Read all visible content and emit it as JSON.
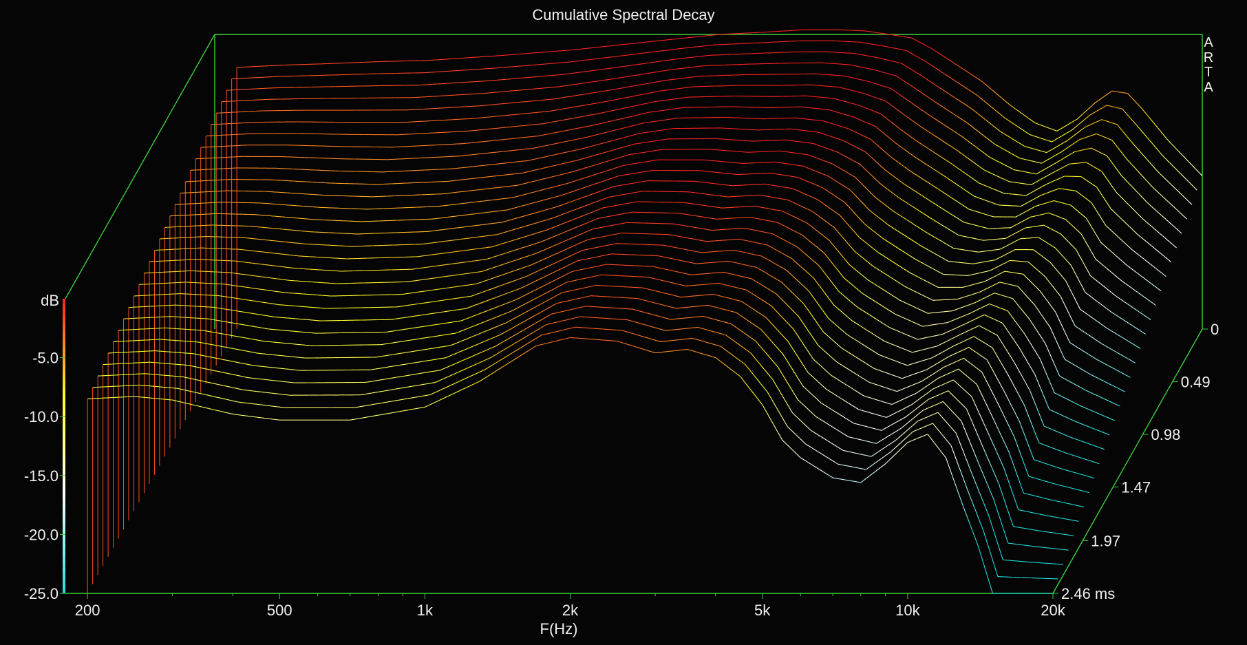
{
  "chart_data": {
    "type": "waterfall",
    "title": "Cumulative Spectral Decay",
    "xlabel": "F(Hz)",
    "ylabel": "dB",
    "watermark": [
      "A",
      "R",
      "T",
      "A"
    ],
    "x_scale": "log",
    "xlim": [
      180,
      20000
    ],
    "ylim": [
      -25,
      0
    ],
    "x_ticks": [
      {
        "value": 200,
        "label": "200"
      },
      {
        "value": 500,
        "label": "500"
      },
      {
        "value": 1000,
        "label": "1k"
      },
      {
        "value": 2000,
        "label": "2k"
      },
      {
        "value": 5000,
        "label": "5k"
      },
      {
        "value": 10000,
        "label": "10k"
      },
      {
        "value": 20000,
        "label": "20k"
      }
    ],
    "y_ticks": [
      {
        "value": -5,
        "label": "-5.0"
      },
      {
        "value": -10,
        "label": "-10.0"
      },
      {
        "value": -15,
        "label": "-15.0"
      },
      {
        "value": -20,
        "label": "-20.0"
      },
      {
        "value": -25,
        "label": "-25.0"
      }
    ],
    "time_axis": {
      "unit": "ms",
      "ticks": [
        {
          "value": 0,
          "label": "0"
        },
        {
          "value": 0.49,
          "label": "0.49"
        },
        {
          "value": 0.98,
          "label": "0.98"
        },
        {
          "value": 1.47,
          "label": "1.47"
        },
        {
          "value": 1.97,
          "label": "1.97"
        },
        {
          "value": 2.46,
          "label": "2.46 ms"
        }
      ]
    },
    "slice_count": 30,
    "slice_step_ms": 0.0848,
    "colors": {
      "frame": "#3cd23c",
      "text": "#f0f0f0",
      "background": "#050505",
      "color_scale": [
        "#ff2020",
        "#ffff20",
        "#ffffff",
        "#20e0e0"
      ]
    },
    "first_slice": {
      "freq_hz": [
        200,
        250,
        300,
        400,
        500,
        700,
        1000,
        1300,
        1700,
        2000,
        2500,
        3000,
        3500,
        4000,
        4500,
        5000,
        5500,
        6000,
        7000,
        8000,
        9000,
        10000,
        11000,
        12000,
        13000,
        14000,
        15000,
        17000,
        20000
      ],
      "db": [
        -2.8,
        -2.6,
        -2.5,
        -2.3,
        -2.2,
        -1.8,
        -1.3,
        -0.8,
        -0.3,
        0.0,
        0.2,
        0.4,
        0.4,
        0.3,
        0.0,
        -0.3,
        -1.2,
        -2.2,
        -4.0,
        -6.0,
        -7.5,
        -8.2,
        -7.2,
        -5.8,
        -4.8,
        -5.0,
        -6.3,
        -9.0,
        -12.0
      ]
    },
    "last_slice": {
      "freq_hz": [
        200,
        250,
        300,
        400,
        500,
        700,
        1000,
        1300,
        1700,
        2000,
        2500,
        3000,
        3500,
        4000,
        4500,
        5000,
        5500,
        6000,
        7000,
        8000,
        9000,
        10000,
        11000,
        12000,
        13000,
        14000,
        15000,
        17000,
        20000
      ],
      "db": [
        -8.5,
        -8.3,
        -8.6,
        -9.8,
        -10.3,
        -10.3,
        -9.2,
        -7.0,
        -4.0,
        -3.3,
        -3.6,
        -4.6,
        -4.3,
        -5.0,
        -6.6,
        -9.0,
        -12.0,
        -13.5,
        -15.2,
        -15.6,
        -14.0,
        -12.2,
        -11.5,
        -13.5,
        -17.5,
        -21.0,
        -25.0,
        -25.0,
        -25.0
      ]
    }
  }
}
